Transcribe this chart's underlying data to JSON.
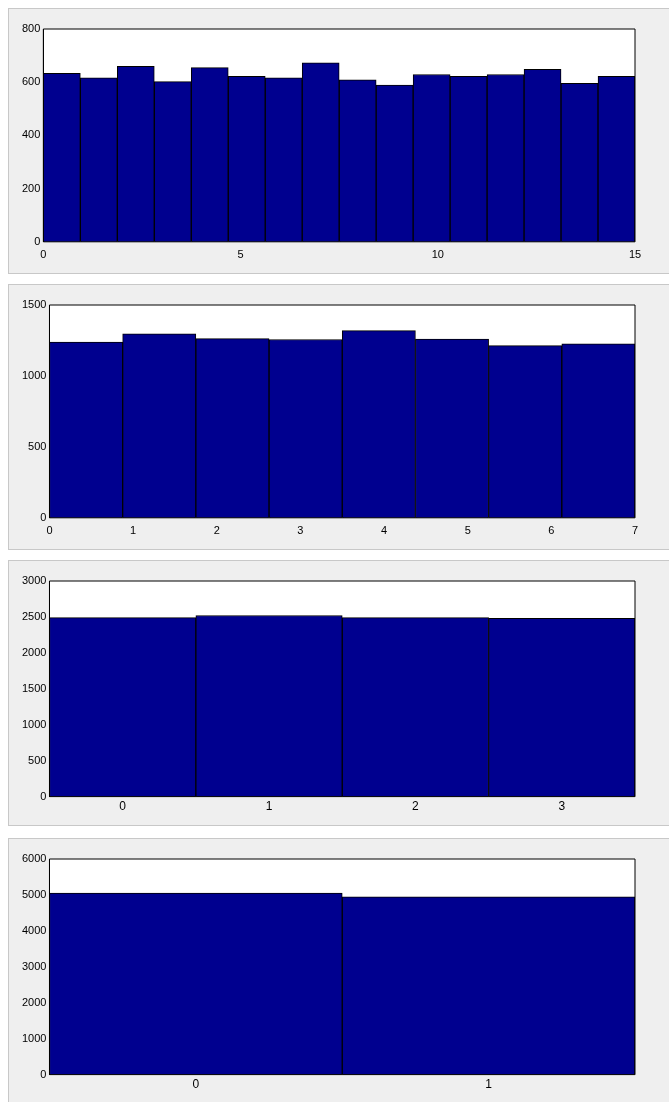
{
  "chart_data": [
    {
      "type": "histogram",
      "bins": [
        0,
        0.9375,
        1.875,
        2.8125,
        3.75,
        4.6875,
        5.625,
        6.5625,
        7.5,
        8.4375,
        9.375,
        10.3125,
        11.25,
        12.1875,
        13.125,
        14.0625,
        15
      ],
      "values": [
        633,
        616,
        660,
        602,
        655,
        622,
        616,
        673,
        609,
        589,
        629,
        622,
        629,
        648,
        596,
        622
      ],
      "color": "#00008f",
      "xlim": [
        0,
        15
      ],
      "xticks": [
        0,
        5,
        10,
        15
      ],
      "ylim": [
        0,
        800
      ],
      "yticks": [
        0,
        200,
        400,
        600,
        800
      ],
      "grid": false
    },
    {
      "type": "histogram",
      "bins": [
        0,
        0.875,
        1.75,
        2.625,
        3.5,
        4.375,
        5.25,
        6.125,
        7
      ],
      "values": [
        1239,
        1297,
        1263,
        1257,
        1319,
        1260,
        1214,
        1226
      ],
      "color": "#00008f",
      "xlim": [
        0,
        7
      ],
      "xticks": [
        0,
        1,
        2,
        3,
        4,
        5,
        6,
        7
      ],
      "ylim": [
        0,
        1500
      ],
      "yticks": [
        0,
        500,
        1000,
        1500
      ],
      "grid": false
    },
    {
      "type": "bar",
      "categories": [
        "0",
        "1",
        "2",
        "3"
      ],
      "values": [
        2490,
        2520,
        2490,
        2480
      ],
      "color": "#00008f",
      "ylim": [
        0,
        3000
      ],
      "yticks": [
        0,
        500,
        1000,
        1500,
        2000,
        2500,
        3000
      ],
      "grid": false
    },
    {
      "type": "bar",
      "categories": [
        "0",
        "1"
      ],
      "values": [
        5050,
        4950
      ],
      "color": "#00008f",
      "ylim": [
        0,
        6000
      ],
      "yticks": [
        0,
        1000,
        2000,
        3000,
        4000,
        5000,
        6000
      ],
      "grid": false
    }
  ]
}
